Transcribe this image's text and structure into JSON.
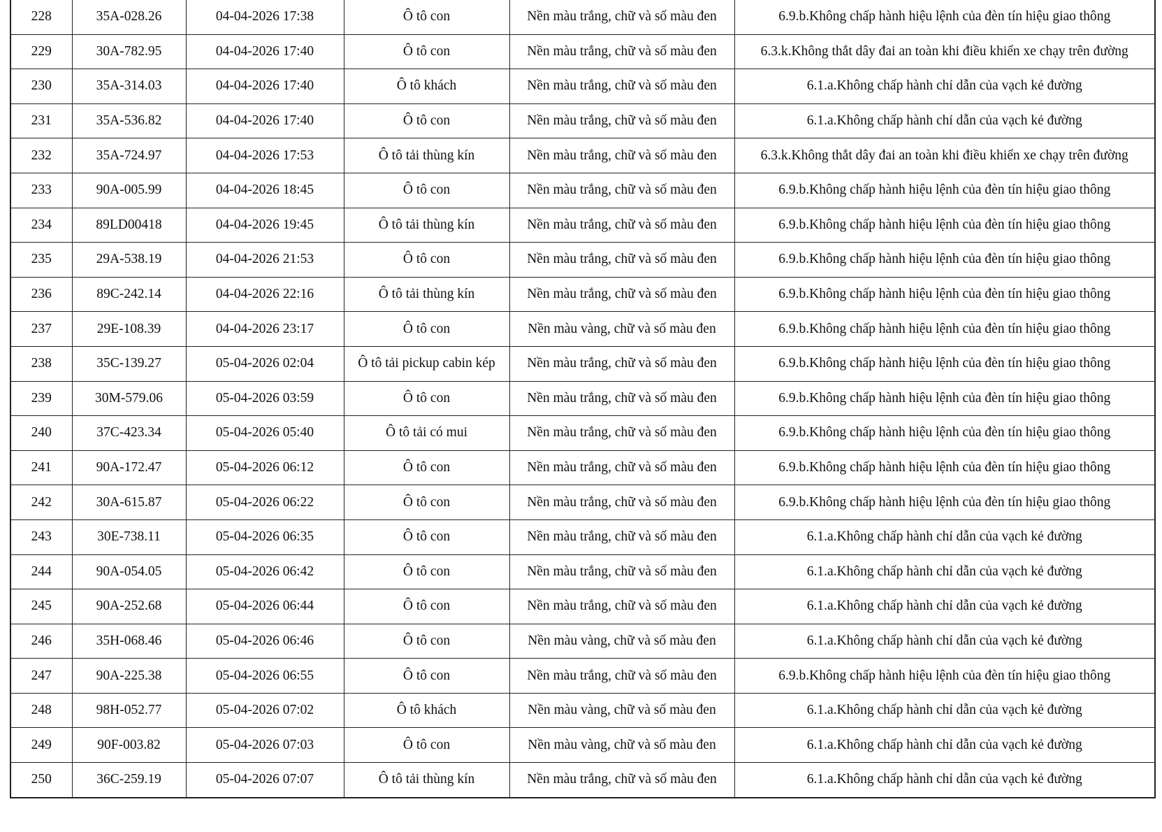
{
  "table": {
    "rows": [
      [
        "228",
        "35A-028.26",
        "04-04-2026 17:38",
        "Ô tô con",
        "Nền màu trắng, chữ và số màu đen",
        "6.9.b.Không chấp hành hiệu lệnh của đèn tín hiệu giao thông"
      ],
      [
        "229",
        "30A-782.95",
        "04-04-2026 17:40",
        "Ô tô con",
        "Nền màu trắng, chữ và số màu đen",
        "6.3.k.Không thắt dây đai an toàn khi điều khiển xe chạy trên đường"
      ],
      [
        "230",
        "35A-314.03",
        "04-04-2026 17:40",
        "Ô tô khách",
        "Nền màu trắng, chữ và số màu đen",
        "6.1.a.Không chấp hành chỉ dẫn của vạch kẻ đường"
      ],
      [
        "231",
        "35A-536.82",
        "04-04-2026 17:40",
        "Ô tô con",
        "Nền màu trắng, chữ và số màu đen",
        "6.1.a.Không chấp hành chỉ dẫn của vạch kẻ đường"
      ],
      [
        "232",
        "35A-724.97",
        "04-04-2026 17:53",
        "Ô tô tải thùng kín",
        "Nền màu trắng, chữ và số màu đen",
        "6.3.k.Không thắt dây đai an toàn khi điều khiển xe chạy trên đường"
      ],
      [
        "233",
        "90A-005.99",
        "04-04-2026 18:45",
        "Ô tô con",
        "Nền màu trắng, chữ và số màu đen",
        "6.9.b.Không chấp hành hiệu lệnh của đèn tín hiệu giao thông"
      ],
      [
        "234",
        "89LD00418",
        "04-04-2026 19:45",
        "Ô tô tải thùng kín",
        "Nền màu trắng, chữ và số màu đen",
        "6.9.b.Không chấp hành hiệu lệnh của đèn tín hiệu giao thông"
      ],
      [
        "235",
        "29A-538.19",
        "04-04-2026 21:53",
        "Ô tô con",
        "Nền màu trắng, chữ và số màu đen",
        "6.9.b.Không chấp hành hiệu lệnh của đèn tín hiệu giao thông"
      ],
      [
        "236",
        "89C-242.14",
        "04-04-2026 22:16",
        "Ô tô tải thùng kín",
        "Nền màu trắng, chữ và số màu đen",
        "6.9.b.Không chấp hành hiệu lệnh của đèn tín hiệu giao thông"
      ],
      [
        "237",
        "29E-108.39",
        "04-04-2026 23:17",
        "Ô tô con",
        "Nền màu vàng, chữ và số màu đen",
        "6.9.b.Không chấp hành hiệu lệnh của đèn tín hiệu giao thông"
      ],
      [
        "238",
        "35C-139.27",
        "05-04-2026 02:04",
        "Ô tô tải pickup cabin kép",
        "Nền màu trắng, chữ và số màu đen",
        "6.9.b.Không chấp hành hiệu lệnh của đèn tín hiệu giao thông"
      ],
      [
        "239",
        "30M-579.06",
        "05-04-2026 03:59",
        "Ô tô con",
        "Nền màu trắng, chữ và số màu đen",
        "6.9.b.Không chấp hành hiệu lệnh của đèn tín hiệu giao thông"
      ],
      [
        "240",
        "37C-423.34",
        "05-04-2026 05:40",
        "Ô tô tải có mui",
        "Nền màu trắng, chữ và số màu đen",
        "6.9.b.Không chấp hành hiệu lệnh của đèn tín hiệu giao thông"
      ],
      [
        "241",
        "90A-172.47",
        "05-04-2026 06:12",
        "Ô tô con",
        "Nền màu trắng, chữ và số màu đen",
        "6.9.b.Không chấp hành hiệu lệnh của đèn tín hiệu giao thông"
      ],
      [
        "242",
        "30A-615.87",
        "05-04-2026 06:22",
        "Ô tô con",
        "Nền màu trắng, chữ và số màu đen",
        "6.9.b.Không chấp hành hiệu lệnh của đèn tín hiệu giao thông"
      ],
      [
        "243",
        "30E-738.11",
        "05-04-2026 06:35",
        "Ô tô con",
        "Nền màu trắng, chữ và số màu đen",
        "6.1.a.Không chấp hành chỉ dẫn của vạch kẻ đường"
      ],
      [
        "244",
        "90A-054.05",
        "05-04-2026 06:42",
        "Ô tô con",
        "Nền màu trắng, chữ và số màu đen",
        "6.1.a.Không chấp hành chỉ dẫn của vạch kẻ đường"
      ],
      [
        "245",
        "90A-252.68",
        "05-04-2026 06:44",
        "Ô tô con",
        "Nền màu trắng, chữ và số màu đen",
        "6.1.a.Không chấp hành chỉ dẫn của vạch kẻ đường"
      ],
      [
        "246",
        "35H-068.46",
        "05-04-2026 06:46",
        "Ô tô con",
        "Nền màu vàng, chữ và số màu đen",
        "6.1.a.Không chấp hành chỉ dẫn của vạch kẻ đường"
      ],
      [
        "247",
        "90A-225.38",
        "05-04-2026 06:55",
        "Ô tô con",
        "Nền màu trắng, chữ và số màu đen",
        "6.9.b.Không chấp hành hiệu lệnh của đèn tín hiệu giao thông"
      ],
      [
        "248",
        "98H-052.77",
        "05-04-2026 07:02",
        "Ô tô khách",
        "Nền màu vàng, chữ và số màu đen",
        "6.1.a.Không chấp hành chỉ dẫn của vạch kẻ đường"
      ],
      [
        "249",
        "90F-003.82",
        "05-04-2026 07:03",
        "Ô tô con",
        "Nền màu vàng, chữ và số màu đen",
        "6.1.a.Không chấp hành chỉ dẫn của vạch kẻ đường"
      ],
      [
        "250",
        "36C-259.19",
        "05-04-2026 07:07",
        "Ô tô tải thùng kín",
        "Nền màu trắng, chữ và số màu đen",
        "6.1.a.Không chấp hành chỉ dẫn của vạch kẻ đường"
      ]
    ]
  }
}
